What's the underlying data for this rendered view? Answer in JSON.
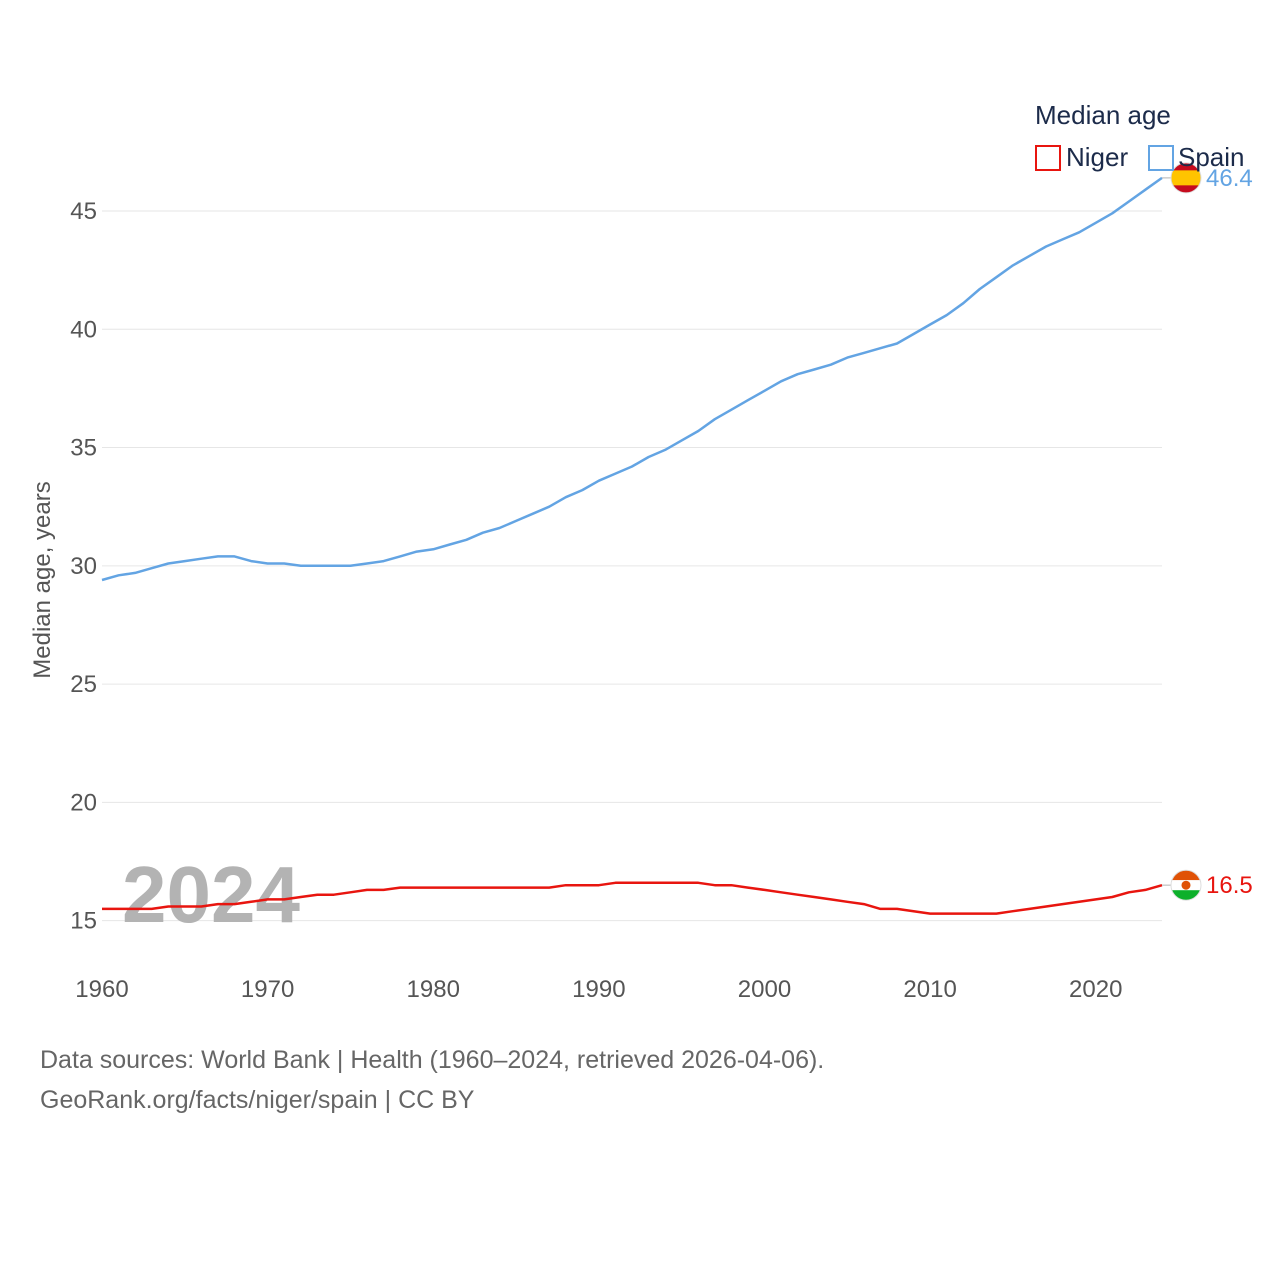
{
  "chart_data": {
    "type": "line",
    "title": "",
    "legend_title": "Median age",
    "xlabel": "",
    "ylabel": "Median age, years",
    "xlim": [
      1960,
      2024
    ],
    "ylim": [
      13,
      48
    ],
    "x_ticks": [
      1960,
      1970,
      1980,
      1990,
      2000,
      2010,
      2020
    ],
    "y_ticks": [
      15,
      20,
      25,
      30,
      35,
      40,
      45
    ],
    "grid": true,
    "legend_position": "top-right",
    "watermark_year": "2024",
    "x": [
      1960,
      1961,
      1962,
      1963,
      1964,
      1965,
      1966,
      1967,
      1968,
      1969,
      1970,
      1971,
      1972,
      1973,
      1974,
      1975,
      1976,
      1977,
      1978,
      1979,
      1980,
      1981,
      1982,
      1983,
      1984,
      1985,
      1986,
      1987,
      1988,
      1989,
      1990,
      1991,
      1992,
      1993,
      1994,
      1995,
      1996,
      1997,
      1998,
      1999,
      2000,
      2001,
      2002,
      2003,
      2004,
      2005,
      2006,
      2007,
      2008,
      2009,
      2010,
      2011,
      2012,
      2013,
      2014,
      2015,
      2016,
      2017,
      2018,
      2019,
      2020,
      2021,
      2022,
      2023,
      2024
    ],
    "series": [
      {
        "name": "Niger",
        "color": "#e8150f",
        "end_label": "16.5",
        "flag": "niger-flag",
        "values": [
          15.5,
          15.5,
          15.5,
          15.5,
          15.6,
          15.6,
          15.6,
          15.7,
          15.7,
          15.8,
          15.9,
          15.9,
          16.0,
          16.1,
          16.1,
          16.2,
          16.3,
          16.3,
          16.4,
          16.4,
          16.4,
          16.4,
          16.4,
          16.4,
          16.4,
          16.4,
          16.4,
          16.4,
          16.5,
          16.5,
          16.5,
          16.6,
          16.6,
          16.6,
          16.6,
          16.6,
          16.6,
          16.5,
          16.5,
          16.4,
          16.3,
          16.2,
          16.1,
          16.0,
          15.9,
          15.8,
          15.7,
          15.5,
          15.5,
          15.4,
          15.3,
          15.3,
          15.3,
          15.3,
          15.3,
          15.4,
          15.5,
          15.6,
          15.7,
          15.8,
          15.9,
          16.0,
          16.2,
          16.3,
          16.5
        ]
      },
      {
        "name": "Spain",
        "color": "#63a4e3",
        "end_label": "46.4",
        "flag": "spain-flag",
        "values": [
          29.4,
          29.6,
          29.7,
          29.9,
          30.1,
          30.2,
          30.3,
          30.4,
          30.4,
          30.2,
          30.1,
          30.1,
          30.0,
          30.0,
          30.0,
          30.0,
          30.1,
          30.2,
          30.4,
          30.6,
          30.7,
          30.9,
          31.1,
          31.4,
          31.6,
          31.9,
          32.2,
          32.5,
          32.9,
          33.2,
          33.6,
          33.9,
          34.2,
          34.6,
          34.9,
          35.3,
          35.7,
          36.2,
          36.6,
          37.0,
          37.4,
          37.8,
          38.1,
          38.3,
          38.5,
          38.8,
          39.0,
          39.2,
          39.4,
          39.8,
          40.2,
          40.6,
          41.1,
          41.7,
          42.2,
          42.7,
          43.1,
          43.5,
          43.8,
          44.1,
          44.5,
          44.9,
          45.4,
          45.9,
          46.4
        ]
      }
    ]
  },
  "footer": {
    "line1": "Data sources: World Bank | Health (1960–2024, retrieved 2026-04-06).",
    "line2": "GeoRank.org/facts/niger/spain | CC BY"
  }
}
